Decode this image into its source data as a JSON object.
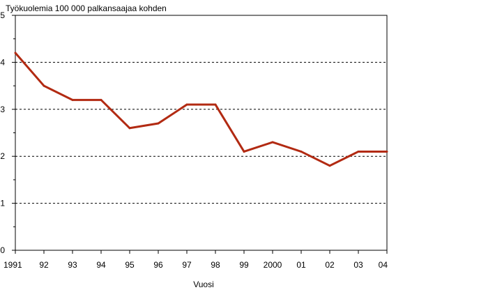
{
  "chart_data": {
    "type": "line",
    "title": "Työkuolemia 100 000 palkansaajaa kohden",
    "xlabel": "Vuosi",
    "ylabel": "",
    "x": [
      "1991",
      "92",
      "93",
      "94",
      "95",
      "96",
      "97",
      "98",
      "99",
      "2000",
      "01",
      "02",
      "03",
      "04"
    ],
    "series": [
      {
        "values": [
          4.2,
          3.5,
          3.2,
          3.2,
          2.6,
          2.7,
          3.1,
          3.1,
          2.1,
          2.3,
          2.1,
          1.8,
          2.1,
          2.1
        ]
      }
    ],
    "ylim": [
      0,
      5
    ],
    "yticks": [
      0,
      1,
      2,
      3,
      4,
      5
    ],
    "yminor_step": 0.5,
    "grid": "horizontal dashed at major y ticks",
    "line_color": "#B22A12"
  }
}
